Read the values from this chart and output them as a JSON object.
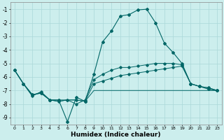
{
  "xlabel": "Humidex (Indice chaleur)",
  "x_labels": [
    "0",
    "1",
    "2",
    "3",
    "4",
    "5",
    "6",
    "7",
    "8",
    "9",
    "10",
    "11",
    "12",
    "13",
    "14",
    "15",
    "16",
    "17",
    "18",
    "19",
    "20",
    "21",
    "22",
    "23"
  ],
  "ylim": [
    -9.5,
    -0.5
  ],
  "xlim": [
    -0.5,
    23.5
  ],
  "yticks": [
    -9,
    -8,
    -7,
    -6,
    -5,
    -4,
    -3,
    -2,
    -1
  ],
  "bg_color": "#cceeed",
  "grid_color": "#aad8d8",
  "line_color": "#006666",
  "curve1_y": [
    -5.5,
    -6.5,
    -7.3,
    -7.2,
    -7.7,
    -7.7,
    -9.3,
    -7.5,
    -7.8,
    -5.8,
    -3.4,
    -2.6,
    -1.5,
    -1.4,
    -1.05,
    -1.0,
    -2.0,
    -3.5,
    -4.2,
    -5.0,
    -6.5,
    -6.7,
    -6.9,
    -7.0
  ],
  "curve2_y": [
    -5.5,
    -6.5,
    -7.3,
    -7.2,
    -7.7,
    -7.7,
    -7.7,
    -8.0,
    -7.7,
    -6.2,
    -5.8,
    -5.5,
    -5.3,
    -5.3,
    -5.2,
    -5.1,
    -5.0,
    -5.0,
    -5.0,
    -5.1,
    -6.5,
    -6.7,
    -6.8,
    -7.0
  ],
  "curve3_y": [
    -5.5,
    -6.5,
    -7.4,
    -7.1,
    -7.7,
    -7.8,
    -7.7,
    -7.7,
    -7.8,
    -6.5,
    -6.3,
    -6.1,
    -5.9,
    -5.8,
    -5.7,
    -5.6,
    -5.5,
    -5.4,
    -5.3,
    -5.2,
    -6.5,
    -6.7,
    -6.8,
    -7.0
  ],
  "curve4_y": [
    -5.5,
    -6.5,
    -7.4,
    -7.1,
    -7.7,
    -7.8,
    -7.7,
    -7.7,
    -7.8,
    -7.0,
    -7.0,
    -7.0,
    -7.0,
    -7.0,
    -7.0,
    -7.0,
    -7.0,
    -7.0,
    -7.0,
    -7.0,
    -7.0,
    -7.0,
    -7.0,
    -7.0
  ]
}
